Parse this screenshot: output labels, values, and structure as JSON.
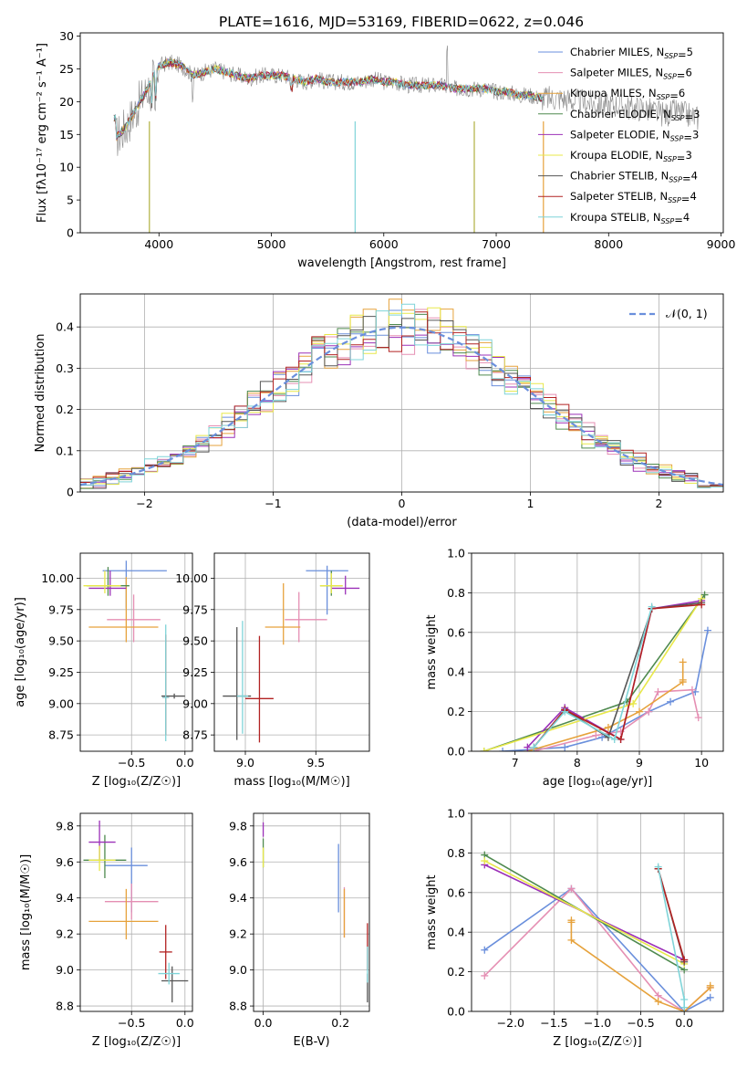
{
  "figure_title": "PLATE=1616, MJD=53169, FIBERID=0622, z=0.046",
  "series_styles": [
    {
      "name": "Chabrier MILES",
      "nssp": "5",
      "color": "#6a8fdc"
    },
    {
      "name": "Salpeter MILES",
      "nssp": "6",
      "color": "#e58fb3"
    },
    {
      "name": "Kroupa MILES",
      "nssp": "6",
      "color": "#e6a23c"
    },
    {
      "name": "Chabrier ELODIE",
      "nssp": "3",
      "color": "#4f8a4f"
    },
    {
      "name": "Salpeter ELODIE",
      "nssp": "3",
      "color": "#9b30b8"
    },
    {
      "name": "Kroupa ELODIE",
      "nssp": "3",
      "color": "#e8e84a"
    },
    {
      "name": "Chabrier STELIB",
      "nssp": "4",
      "color": "#555555"
    },
    {
      "name": "Salpeter STELIB",
      "nssp": "4",
      "color": "#b22222"
    },
    {
      "name": "Kroupa STELIB",
      "nssp": "4",
      "color": "#7fd4d8"
    }
  ],
  "chart_data": [
    {
      "id": "spectrum",
      "type": "line",
      "title": "PLATE=1616, MJD=53169, FIBERID=0622, z=0.046",
      "xlabel": "wavelength [Angstrom, rest frame]",
      "ylabel": "Flux [fλ10⁻¹⁷ erg cm⁻² s⁻¹ A⁻¹]",
      "xlim": [
        3300,
        9020
      ],
      "ylim": [
        0,
        30.5
      ],
      "xticks": [
        4000,
        5000,
        6000,
        7000,
        8000,
        9000
      ],
      "yticks": [
        0,
        5,
        10,
        15,
        20,
        25,
        30
      ],
      "grid": false,
      "legend_position": "top-right",
      "observed": {
        "x": [
          3620,
          3700,
          3800,
          3900,
          3950,
          4000,
          4100,
          4200,
          4300,
          4400,
          4500,
          4600,
          4700,
          4800,
          4900,
          5000,
          5100,
          5200,
          5300,
          5400,
          5500,
          5600,
          5700,
          5800,
          5900,
          6000,
          6100,
          6200,
          6300,
          6400,
          6500,
          6600,
          6700,
          6800,
          6900,
          7000,
          7100,
          7200,
          7300,
          7400,
          7500,
          7600,
          7700,
          7800,
          7900,
          8000,
          8100,
          8200,
          8300,
          8400,
          8500,
          8600,
          8700,
          8800
        ],
        "y": [
          14.5,
          16,
          19,
          22,
          24,
          25.5,
          26,
          25.5,
          24,
          24.5,
          25,
          24.5,
          24,
          23.5,
          24,
          24,
          24,
          23.5,
          23,
          23.5,
          23,
          23,
          23,
          23,
          23.5,
          23,
          23,
          22.5,
          22.5,
          22.5,
          22.5,
          22,
          22,
          22,
          22,
          21.5,
          21.5,
          21,
          21,
          20.5,
          20.5,
          20.5,
          20,
          20,
          19.5,
          19.5,
          19.5,
          19,
          19,
          18.5,
          18,
          18.5,
          18,
          17.5
        ]
      },
      "model_range": [
        3600,
        7420
      ]
    },
    {
      "id": "residuals",
      "type": "step",
      "xlabel": "(data-model)/error",
      "ylabel": "Normed distribution",
      "xlim": [
        -2.5,
        2.5
      ],
      "ylim": [
        0,
        0.48
      ],
      "xticks": [
        -2,
        -1,
        0,
        1,
        2
      ],
      "yticks": [
        0,
        0.1,
        0.2,
        0.3,
        0.4
      ],
      "grid": true,
      "legend_position": "top-right",
      "reference_label": "𝒩(0, 1)",
      "bin_width": 0.1
    },
    {
      "id": "age-vs-Z",
      "type": "errorbar",
      "xlabel": "Z [log₁₀(Z/Z☉)]",
      "ylabel": "age  [log₁₀(age/yr)]",
      "xlim": [
        -0.98,
        0.07
      ],
      "ylim": [
        8.62,
        10.2
      ],
      "xticks": [
        -0.5,
        0.0
      ],
      "yticks": [
        8.75,
        9.0,
        9.25,
        9.5,
        9.75,
        10.0
      ],
      "grid": true,
      "points": [
        {
          "x": -0.55,
          "xerr": [
            0.22,
            0.38
          ],
          "y": 10.06,
          "yerr": [
            0.3,
            0.08
          ]
        },
        {
          "x": -0.48,
          "xerr": [
            0.25,
            0.25
          ],
          "y": 9.67,
          "yerr": [
            0.18,
            0.2
          ]
        },
        {
          "x": -0.55,
          "xerr": [
            0.35,
            0.3
          ],
          "y": 9.61,
          "yerr": [
            0.12,
            0.4
          ]
        },
        {
          "x": -0.72,
          "xerr": [
            0.2,
            0.2
          ],
          "y": 9.94,
          "yerr": [
            0.08,
            0.15
          ]
        },
        {
          "x": -0.7,
          "xerr": [
            0.2,
            0.15
          ],
          "y": 9.92,
          "yerr": [
            0.06,
            0.14
          ]
        },
        {
          "x": -0.75,
          "xerr": [
            0.2,
            0.15
          ],
          "y": 9.94,
          "yerr": [
            0.06,
            0.12
          ]
        },
        {
          "x": -0.1,
          "xerr": [
            0.12,
            0.1
          ],
          "y": 9.06,
          "yerr": [
            0.02,
            0.02
          ]
        },
        {
          "x": -0.18,
          "xerr": [
            0.03,
            0.03
          ],
          "y": 9.05,
          "yerr": [
            0.3,
            0.5
          ]
        },
        {
          "x": -0.18,
          "xerr": [
            0.03,
            0.03
          ],
          "y": 9.05,
          "yerr": [
            0.35,
            0.58
          ]
        }
      ]
    },
    {
      "id": "age-vs-mass",
      "type": "errorbar",
      "xlabel": "mass [log₁₀(M/M☉)]",
      "ylabel": "",
      "xlim": [
        8.78,
        9.88
      ],
      "ylim": [
        8.62,
        10.2
      ],
      "xticks": [
        9.0,
        9.5
      ],
      "yticks": [
        8.75,
        9.0,
        9.25,
        9.5,
        9.75,
        10.0
      ],
      "grid": true,
      "points": [
        {
          "x": 9.58,
          "xerr": [
            0.15,
            0.15
          ],
          "y": 10.06,
          "yerr": [
            0.35,
            0.04
          ]
        },
        {
          "x": 9.38,
          "xerr": [
            0.1,
            0.2
          ],
          "y": 9.67,
          "yerr": [
            0.18,
            0.22
          ]
        },
        {
          "x": 9.27,
          "xerr": [
            0.13,
            0.12
          ],
          "y": 9.61,
          "yerr": [
            0.14,
            0.35
          ]
        },
        {
          "x": 9.61,
          "xerr": [
            0.08,
            0.08
          ],
          "y": 9.94,
          "yerr": [
            0.08,
            0.12
          ]
        },
        {
          "x": 9.71,
          "xerr": [
            0.1,
            0.1
          ],
          "y": 9.92,
          "yerr": [
            0.05,
            0.1
          ]
        },
        {
          "x": 9.61,
          "xerr": [
            0.08,
            0.08
          ],
          "y": 9.94,
          "yerr": [
            0.06,
            0.1
          ]
        },
        {
          "x": 8.94,
          "xerr": [
            0.1,
            0.1
          ],
          "y": 9.06,
          "yerr": [
            0.35,
            0.55
          ]
        },
        {
          "x": 9.1,
          "xerr": [
            0.1,
            0.1
          ],
          "y": 9.04,
          "yerr": [
            0.35,
            0.5
          ]
        },
        {
          "x": 8.98,
          "xerr": [
            0.04,
            0.04
          ],
          "y": 9.06,
          "yerr": [
            0.3,
            0.6
          ]
        }
      ]
    },
    {
      "id": "weight-vs-age",
      "type": "line",
      "xlabel": "age  [log₁₀(age/yr)]",
      "ylabel": "mass weight",
      "xlim": [
        6.3,
        10.35
      ],
      "ylim": [
        0,
        1
      ],
      "xticks": [
        7,
        8,
        9,
        10
      ],
      "yticks": [
        0.0,
        0.2,
        0.4,
        0.6,
        0.8,
        1.0
      ],
      "grid": true,
      "series": [
        {
          "x": [
            6.8,
            7.8,
            8.4,
            9.15,
            9.5,
            9.9,
            10.1
          ],
          "y": [
            0.0,
            0.02,
            0.07,
            0.2,
            0.25,
            0.3,
            0.61
          ]
        },
        {
          "x": [
            7.3,
            8.3,
            8.7,
            9.15,
            9.3,
            9.85,
            9.95
          ],
          "y": [
            0.0,
            0.08,
            0.1,
            0.2,
            0.3,
            0.31,
            0.17
          ]
        },
        {
          "x": [
            7.2,
            8.5,
            9.0,
            9.7,
            9.7,
            9.7
          ],
          "y": [
            0.0,
            0.12,
            0.2,
            0.35,
            0.45,
            0.36
          ]
        },
        {
          "x": [
            6.5,
            8.8,
            10.05
          ],
          "y": [
            0.0,
            0.25,
            0.79
          ]
        },
        {
          "x": [
            7.2,
            7.8,
            8.7,
            9.2,
            10.0
          ],
          "y": [
            0.02,
            0.22,
            0.06,
            0.72,
            0.76
          ]
        },
        {
          "x": [
            6.5,
            8.9,
            10.0
          ],
          "y": [
            0.0,
            0.24,
            0.77
          ]
        },
        {
          "x": [
            7.3,
            7.8,
            8.5,
            9.2,
            10.0
          ],
          "y": [
            0.02,
            0.21,
            0.07,
            0.72,
            0.75
          ]
        },
        {
          "x": [
            7.3,
            7.8,
            8.7,
            9.2,
            10.0
          ],
          "y": [
            0.02,
            0.21,
            0.06,
            0.72,
            0.74
          ]
        },
        {
          "x": [
            7.3,
            7.8,
            8.6,
            9.2
          ],
          "y": [
            0.02,
            0.2,
            0.06,
            0.73
          ]
        }
      ]
    },
    {
      "id": "mass-vs-Z",
      "type": "errorbar",
      "xlabel": "Z [log₁₀(Z/Z☉)]",
      "ylabel": "mass [log₁₀(M/M☉)]",
      "xlim": [
        -0.98,
        0.07
      ],
      "ylim": [
        8.77,
        9.87
      ],
      "xticks": [
        -0.5,
        0.0
      ],
      "yticks": [
        8.8,
        9.0,
        9.2,
        9.4,
        9.6,
        9.8
      ],
      "grid": true,
      "points": [
        {
          "x": -0.5,
          "xerr": [
            0.25,
            0.15
          ],
          "y": 9.58,
          "yerr": [
            0.26,
            0.1
          ]
        },
        {
          "x": -0.5,
          "xerr": [
            0.25,
            0.25
          ],
          "y": 9.38,
          "yerr": [
            0.1,
            0.1
          ]
        },
        {
          "x": -0.55,
          "xerr": [
            0.35,
            0.3
          ],
          "y": 9.27,
          "yerr": [
            0.1,
            0.18
          ]
        },
        {
          "x": -0.75,
          "xerr": [
            0.2,
            0.2
          ],
          "y": 9.61,
          "yerr": [
            0.1,
            0.14
          ]
        },
        {
          "x": -0.8,
          "xerr": [
            0.1,
            0.15
          ],
          "y": 9.71,
          "yerr": [
            0.1,
            0.12
          ]
        },
        {
          "x": -0.8,
          "xerr": [
            0.1,
            0.15
          ],
          "y": 9.61,
          "yerr": [
            0.06,
            0.08
          ]
        },
        {
          "x": -0.12,
          "xerr": [
            0.1,
            0.15
          ],
          "y": 8.94,
          "yerr": [
            0.12,
            0.08
          ]
        },
        {
          "x": -0.18,
          "xerr": [
            0.06,
            0.06
          ],
          "y": 9.1,
          "yerr": [
            0.15,
            0.15
          ]
        },
        {
          "x": -0.15,
          "xerr": [
            0.1,
            0.1
          ],
          "y": 8.98,
          "yerr": [
            0.06,
            0.06
          ]
        }
      ]
    },
    {
      "id": "mass-vs-ebv",
      "type": "errorbar",
      "xlabel": "E(B-V)",
      "ylabel": "",
      "xlim": [
        -0.025,
        0.275
      ],
      "ylim": [
        8.77,
        9.87
      ],
      "xticks": [
        0.0,
        0.2
      ],
      "yticks": [
        8.8,
        9.0,
        9.2,
        9.4,
        9.6,
        9.8
      ],
      "grid": true,
      "points": [
        {
          "x": 0.195,
          "xerr": [
            0,
            0
          ],
          "y": 9.5,
          "yerr": [
            0.18,
            0.2
          ]
        },
        {
          "x": 0.21,
          "xerr": [
            0,
            0
          ],
          "y": 9.32,
          "yerr": [
            0.14,
            0.14
          ]
        },
        {
          "x": 0.21,
          "xerr": [
            0,
            0
          ],
          "y": 9.3,
          "yerr": [
            0.12,
            0.15
          ]
        },
        {
          "x": 0.0,
          "xerr": [
            0,
            0
          ],
          "y": 9.65,
          "yerr": [
            0.08,
            0.08
          ]
        },
        {
          "x": 0.0,
          "xerr": [
            0,
            0
          ],
          "y": 9.78,
          "yerr": [
            0.04,
            0.04
          ]
        },
        {
          "x": 0.0,
          "xerr": [
            0,
            0
          ],
          "y": 9.62,
          "yerr": [
            0.05,
            0.06
          ]
        },
        {
          "x": 0.27,
          "xerr": [
            0,
            0
          ],
          "y": 8.92,
          "yerr": [
            0.1,
            0.06
          ]
        },
        {
          "x": 0.27,
          "xerr": [
            0,
            0
          ],
          "y": 9.12,
          "yerr": [
            0.12,
            0.14
          ]
        },
        {
          "x": 0.27,
          "xerr": [
            0,
            0
          ],
          "y": 8.98,
          "yerr": [
            0.05,
            0.15
          ]
        }
      ]
    },
    {
      "id": "weight-vs-Z",
      "type": "line",
      "xlabel": "Z [log₁₀(Z/Z☉)]",
      "ylabel": "mass weight",
      "xlim": [
        -2.45,
        0.45
      ],
      "ylim": [
        0,
        1
      ],
      "xticks": [
        -2.0,
        -1.5,
        -1.0,
        -0.5,
        0.0
      ],
      "yticks": [
        0.0,
        0.2,
        0.4,
        0.6,
        0.8,
        1.0
      ],
      "grid": true,
      "series": [
        {
          "x": [
            -2.3,
            -1.3,
            0.0,
            0.3
          ],
          "y": [
            0.31,
            0.62,
            0.0,
            0.07
          ]
        },
        {
          "x": [
            -2.3,
            -1.3,
            -0.3,
            0.0,
            0.3
          ],
          "y": [
            0.18,
            0.62,
            0.08,
            0.0,
            0.12
          ]
        },
        {
          "x": [
            -1.3,
            -1.3,
            -1.3,
            -0.3,
            0.0,
            0.3,
            0.3
          ],
          "y": [
            0.45,
            0.46,
            0.36,
            0.05,
            0.0,
            0.12,
            0.13
          ]
        },
        {
          "x": [
            -2.3,
            0.0
          ],
          "y": [
            0.79,
            0.21
          ]
        },
        {
          "x": [
            -2.3,
            0.0
          ],
          "y": [
            0.74,
            0.26
          ]
        },
        {
          "x": [
            -2.3,
            0.0
          ],
          "y": [
            0.76,
            0.24
          ]
        },
        {
          "x": [
            -0.3,
            0.0
          ],
          "y": [
            0.72,
            0.25
          ]
        },
        {
          "x": [
            -0.3,
            0.0
          ],
          "y": [
            0.72,
            0.26
          ]
        },
        {
          "x": [
            -0.3,
            0.0,
            0.0
          ],
          "y": [
            0.73,
            0.06,
            0.02
          ]
        }
      ]
    }
  ]
}
